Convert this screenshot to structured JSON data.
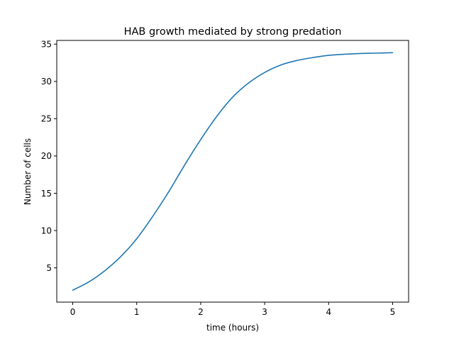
{
  "chart_data": {
    "type": "line",
    "title": "HAB growth mediated by strong predation",
    "xlabel": "time (hours)",
    "ylabel": "Number of cells",
    "xlim": [
      -0.25,
      5.25
    ],
    "ylim": [
      0.4,
      35.5
    ],
    "xticks": [
      0,
      1,
      2,
      3,
      4,
      5
    ],
    "yticks": [
      5,
      10,
      15,
      20,
      25,
      30,
      35
    ],
    "grid": false,
    "series": [
      {
        "color": "#1f77b4",
        "x": [
          0,
          0.25,
          0.5,
          0.75,
          1.0,
          1.25,
          1.5,
          1.75,
          2.0,
          2.25,
          2.5,
          2.75,
          3.0,
          3.25,
          3.5,
          3.75,
          4.0,
          4.25,
          4.5,
          4.75,
          5.0
        ],
        "y": [
          2.0,
          3.1,
          4.6,
          6.5,
          8.9,
          11.9,
          15.2,
          18.8,
          22.2,
          25.3,
          27.9,
          29.8,
          31.2,
          32.2,
          32.8,
          33.2,
          33.5,
          33.65,
          33.75,
          33.8,
          33.85
        ]
      }
    ]
  }
}
